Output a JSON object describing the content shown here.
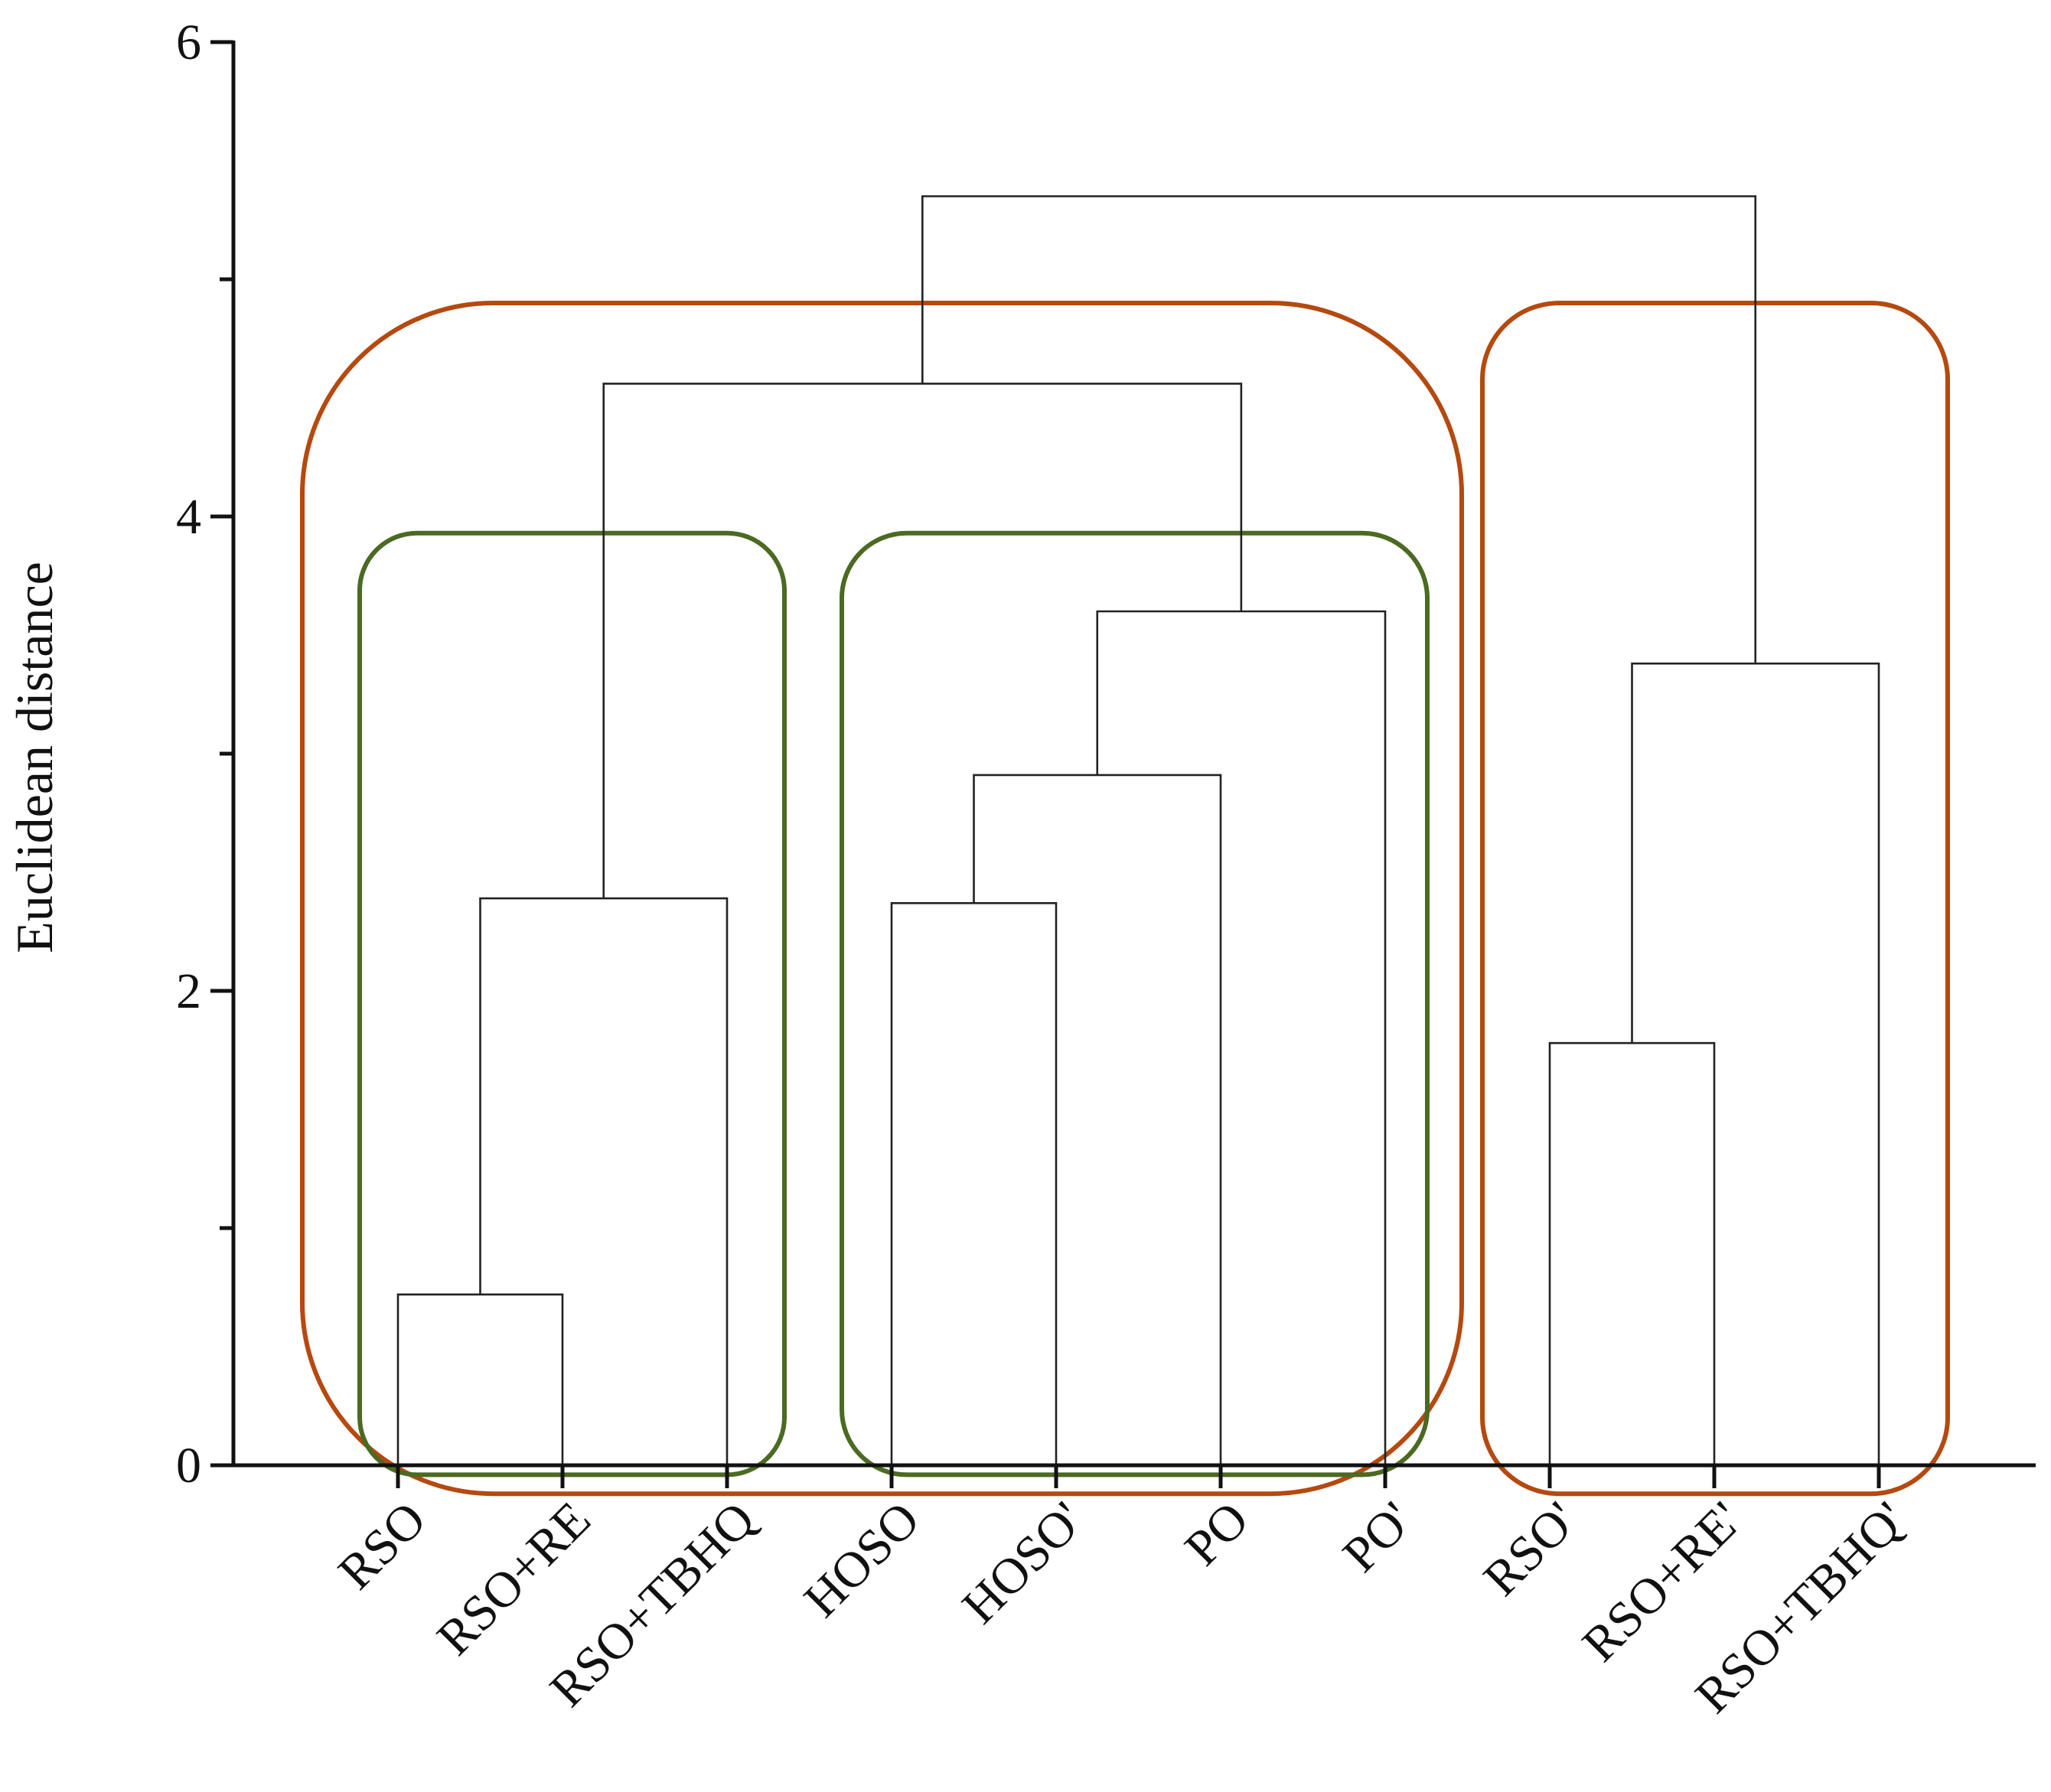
{
  "chart_data": {
    "type": "dendrogram",
    "title": "",
    "xlabel": "",
    "ylabel": "Euclidean distance",
    "ylim": [
      0,
      6
    ],
    "y_ticks": [
      0,
      2,
      4,
      6
    ],
    "y_minor_ticks": [
      1,
      3,
      5
    ],
    "leaves": [
      "RSO",
      "RSO+RE",
      "RSO+TBHQ",
      "HOSO",
      "HOSO'",
      "PO",
      "PO'",
      "RSO'",
      "RSO+RE'",
      "RSO+TBHQ'"
    ],
    "merges": [
      {
        "id": "m1",
        "left": "RSO",
        "right": "RSO+RE",
        "height": 0.72
      },
      {
        "id": "m2",
        "left": "m1",
        "right": "RSO+TBHQ",
        "height": 2.39
      },
      {
        "id": "m3",
        "left": "HOSO",
        "right": "HOSO'",
        "height": 2.37
      },
      {
        "id": "m4",
        "left": "m3",
        "right": "PO",
        "height": 2.91
      },
      {
        "id": "m5",
        "left": "m4",
        "right": "PO'",
        "height": 3.6
      },
      {
        "id": "m6",
        "left": "m2",
        "right": "m5",
        "height": 4.56
      },
      {
        "id": "m7",
        "left": "RSO'",
        "right": "RSO+RE'",
        "height": 1.78
      },
      {
        "id": "m8",
        "left": "m7",
        "right": "RSO+TBHQ'",
        "height": 3.38
      },
      {
        "id": "m9",
        "left": "m6",
        "right": "m8",
        "height": 5.35
      }
    ],
    "cluster_boxes": [
      {
        "name": "cluster-1",
        "color": "#b5490f",
        "leaves": [
          "RSO",
          "RSO+RE",
          "RSO+TBHQ",
          "HOSO",
          "HOSO'",
          "PO",
          "PO'"
        ]
      },
      {
        "name": "cluster-2",
        "color": "#b5490f",
        "leaves": [
          "RSO'",
          "RSO+RE'",
          "RSO+TBHQ'"
        ]
      },
      {
        "name": "subcluster-1a",
        "color": "#4b6a22",
        "leaves": [
          "RSO",
          "RSO+RE",
          "RSO+TBHQ"
        ]
      },
      {
        "name": "subcluster-1b",
        "color": "#4b6a22",
        "leaves": [
          "HOSO",
          "HOSO'",
          "PO",
          "PO'"
        ]
      }
    ],
    "colors": {
      "branch": "#222222",
      "axis": "#111111"
    }
  }
}
